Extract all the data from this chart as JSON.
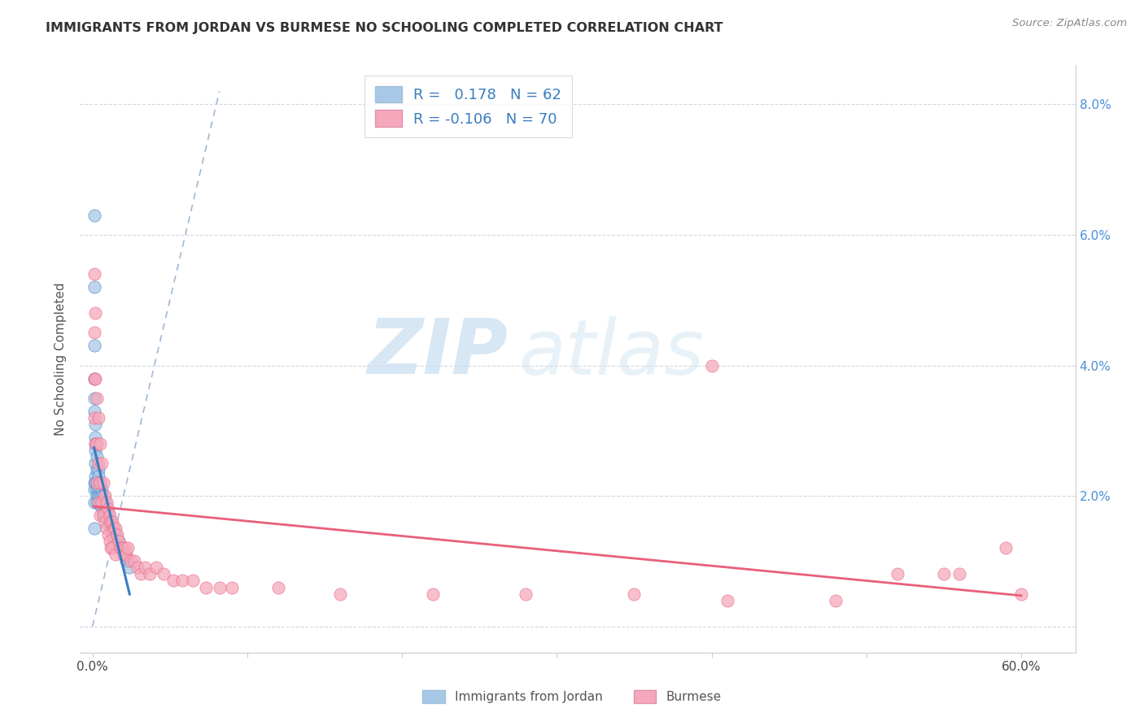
{
  "title": "IMMIGRANTS FROM JORDAN VS BURMESE NO SCHOOLING COMPLETED CORRELATION CHART",
  "source": "Source: ZipAtlas.com",
  "ylabel": "No Schooling Completed",
  "x_tick_labels": [
    "0.0%",
    "",
    "",
    "",
    "",
    "",
    "60.0%"
  ],
  "y_tick_labels_right": [
    "",
    "2.0%",
    "4.0%",
    "6.0%",
    "8.0%"
  ],
  "xlim": [
    -0.008,
    0.635
  ],
  "ylim": [
    -0.004,
    0.086
  ],
  "jordan_color": "#a8c8e8",
  "burmese_color": "#f5a8bc",
  "jordan_line_color": "#3a7cc0",
  "burmese_line_color": "#e8607a",
  "diag_line_color": "#a0b8d8",
  "legend_jordan_r": "0.178",
  "legend_jordan_n": "62",
  "legend_burmese_r": "-0.106",
  "legend_burmese_n": "70",
  "watermark_zip": "ZIP",
  "watermark_atlas": "atlas",
  "jordan_x": [
    0.001,
    0.001,
    0.001,
    0.001,
    0.001,
    0.001,
    0.001,
    0.001,
    0.001,
    0.002,
    0.002,
    0.002,
    0.002,
    0.002,
    0.002,
    0.002,
    0.003,
    0.003,
    0.003,
    0.003,
    0.003,
    0.003,
    0.004,
    0.004,
    0.004,
    0.004,
    0.004,
    0.005,
    0.005,
    0.005,
    0.005,
    0.006,
    0.006,
    0.006,
    0.006,
    0.007,
    0.007,
    0.007,
    0.007,
    0.008,
    0.008,
    0.009,
    0.009,
    0.01,
    0.01,
    0.011,
    0.012,
    0.012,
    0.013,
    0.013,
    0.014,
    0.015,
    0.016,
    0.017,
    0.018,
    0.019,
    0.02,
    0.021,
    0.022,
    0.001,
    0.023,
    0.024
  ],
  "jordan_y": [
    0.063,
    0.052,
    0.043,
    0.038,
    0.035,
    0.033,
    0.022,
    0.021,
    0.019,
    0.031,
    0.029,
    0.028,
    0.027,
    0.025,
    0.023,
    0.022,
    0.026,
    0.024,
    0.022,
    0.021,
    0.02,
    0.019,
    0.024,
    0.023,
    0.022,
    0.021,
    0.02,
    0.022,
    0.021,
    0.02,
    0.019,
    0.021,
    0.02,
    0.019,
    0.018,
    0.02,
    0.019,
    0.018,
    0.017,
    0.019,
    0.018,
    0.018,
    0.017,
    0.017,
    0.016,
    0.016,
    0.016,
    0.015,
    0.015,
    0.014,
    0.014,
    0.014,
    0.013,
    0.013,
    0.012,
    0.012,
    0.011,
    0.011,
    0.01,
    0.015,
    0.01,
    0.009
  ],
  "burmese_x": [
    0.001,
    0.001,
    0.001,
    0.001,
    0.002,
    0.002,
    0.002,
    0.003,
    0.003,
    0.003,
    0.004,
    0.004,
    0.004,
    0.005,
    0.005,
    0.005,
    0.006,
    0.006,
    0.007,
    0.007,
    0.008,
    0.008,
    0.009,
    0.009,
    0.01,
    0.01,
    0.011,
    0.011,
    0.012,
    0.012,
    0.013,
    0.013,
    0.014,
    0.015,
    0.015,
    0.016,
    0.017,
    0.018,
    0.019,
    0.02,
    0.021,
    0.022,
    0.023,
    0.025,
    0.027,
    0.029,
    0.031,
    0.034,
    0.037,
    0.041,
    0.046,
    0.052,
    0.058,
    0.065,
    0.073,
    0.082,
    0.09,
    0.12,
    0.16,
    0.22,
    0.28,
    0.35,
    0.41,
    0.48,
    0.4,
    0.52,
    0.55,
    0.59,
    0.56,
    0.6
  ],
  "burmese_y": [
    0.054,
    0.045,
    0.038,
    0.032,
    0.048,
    0.038,
    0.028,
    0.035,
    0.028,
    0.022,
    0.032,
    0.025,
    0.019,
    0.028,
    0.022,
    0.017,
    0.025,
    0.019,
    0.022,
    0.017,
    0.02,
    0.016,
    0.019,
    0.015,
    0.018,
    0.014,
    0.017,
    0.013,
    0.016,
    0.012,
    0.016,
    0.012,
    0.015,
    0.015,
    0.011,
    0.014,
    0.013,
    0.012,
    0.012,
    0.011,
    0.012,
    0.011,
    0.012,
    0.01,
    0.01,
    0.009,
    0.008,
    0.009,
    0.008,
    0.009,
    0.008,
    0.007,
    0.007,
    0.007,
    0.006,
    0.006,
    0.006,
    0.006,
    0.005,
    0.005,
    0.005,
    0.005,
    0.004,
    0.004,
    0.04,
    0.008,
    0.008,
    0.012,
    0.008,
    0.005
  ]
}
